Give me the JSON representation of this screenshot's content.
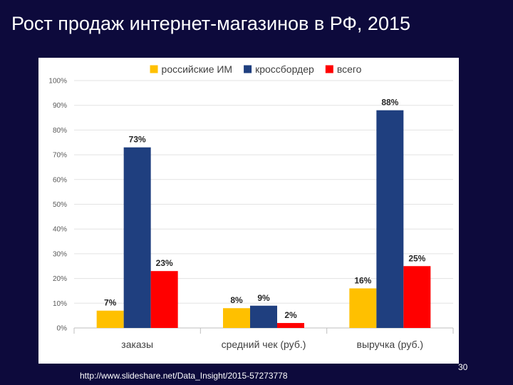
{
  "slide": {
    "title": "Рост продаж интернет-магазинов в РФ, 2015",
    "source": "http://www.slideshare.net/Data_Insight/2015-57273778",
    "page_number": "30"
  },
  "chart_data": {
    "type": "bar",
    "categories": [
      "заказы",
      "средний чек (руб.)",
      "выручка (руб.)"
    ],
    "series": [
      {
        "name": "российские ИМ",
        "color": "#ffc000",
        "values": [
          7,
          8,
          16
        ],
        "labels": [
          "7%",
          "8%",
          "16%"
        ]
      },
      {
        "name": "кроссбордер",
        "color": "#1f3f7f",
        "values": [
          73,
          9,
          88
        ],
        "labels": [
          "73%",
          "9%",
          "88%"
        ]
      },
      {
        "name": "всего",
        "color": "#ff0000",
        "values": [
          23,
          2,
          25
        ],
        "labels": [
          "23%",
          "2%",
          "25%"
        ]
      }
    ],
    "y_ticks": [
      "0%",
      "10%",
      "20%",
      "30%",
      "40%",
      "50%",
      "60%",
      "70%",
      "80%",
      "90%",
      "100%"
    ],
    "ylim": [
      0,
      100
    ],
    "legend_position": "top",
    "grid": true
  }
}
